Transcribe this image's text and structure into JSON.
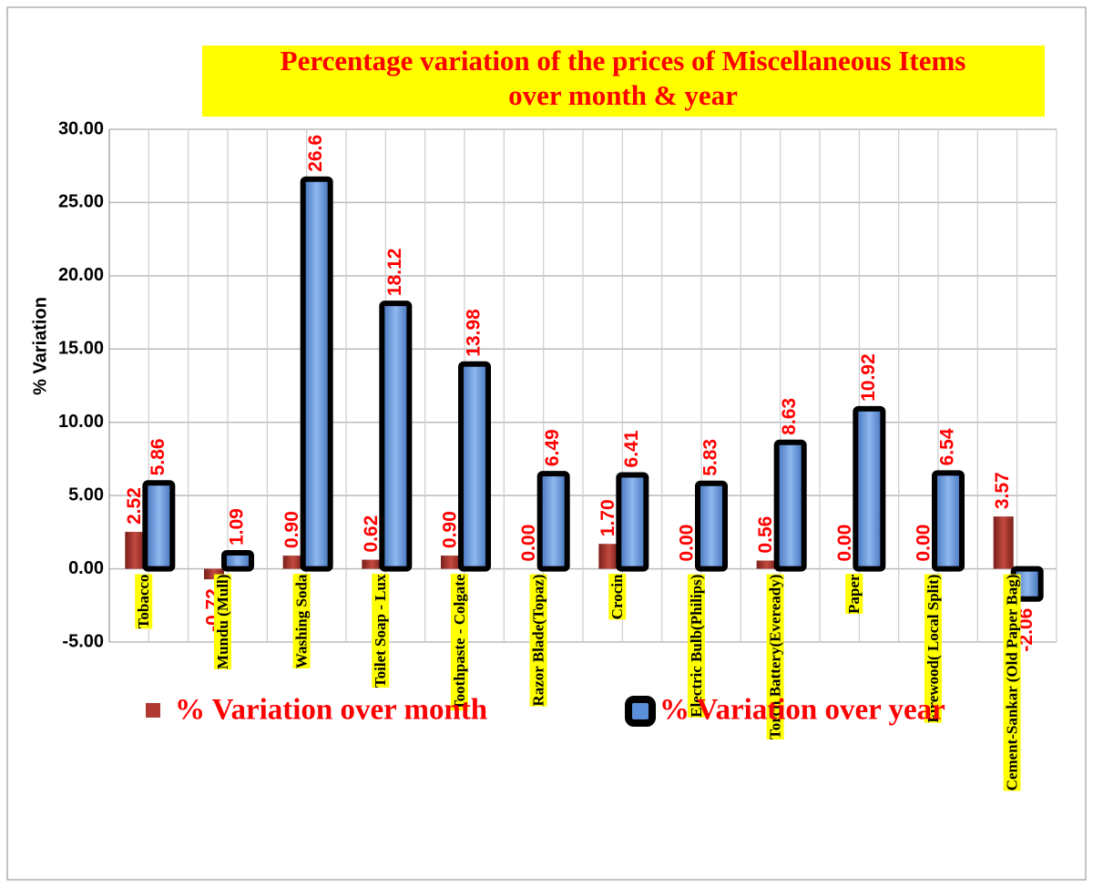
{
  "chart_data": {
    "type": "bar",
    "title": "Percentage variation of the prices of Miscellaneous Items over month & year",
    "y_label": "% Variation",
    "categories": [
      "Tobacco",
      "Mundu (Mull)",
      "Washing Soda",
      "Toilet Soap - Lux",
      "Toothpaste - Colgate",
      "Razor Blade(Topaz)",
      "Crocin",
      "Electric Bulb(Philips)",
      "Torch Battery(Eveready)",
      "Paper",
      "Firewood( Local Split)",
      "Cement-Sankar (Old Paper Bag)"
    ],
    "series": [
      {
        "name": "% Variation over month",
        "color": "#b03a32",
        "values": [
          2.52,
          -0.72,
          0.9,
          0.62,
          0.9,
          0,
          1.7,
          0,
          0.56,
          0,
          0,
          3.57
        ],
        "value_labels": [
          "2.52",
          "-0.72",
          "0.90",
          "0.62",
          "0.90",
          "0.00",
          "1.70",
          "0.00",
          "0.56",
          "0.00",
          "0.00",
          "3.57"
        ]
      },
      {
        "name": "% Variation over year",
        "color": "#5b8fd9",
        "values": [
          5.86,
          1.09,
          26.6,
          18.12,
          13.98,
          6.49,
          6.41,
          5.83,
          8.63,
          10.92,
          6.54,
          -2.06
        ],
        "value_labels": [
          "5.86",
          "1.09",
          "26.6",
          "18.12",
          "13.98",
          "6.49",
          "6.41",
          "5.83",
          "8.63",
          "10.92",
          "6.54",
          "-2.06"
        ]
      }
    ],
    "ylim": [
      -5,
      30
    ],
    "yticks": [
      {
        "value": -5,
        "label": "-5.00"
      },
      {
        "value": 0,
        "label": "0.00"
      },
      {
        "value": 5,
        "label": "5.00"
      },
      {
        "value": 10,
        "label": "10.00"
      },
      {
        "value": 15,
        "label": "15.00"
      },
      {
        "value": 20,
        "label": "20.00"
      },
      {
        "value": 25,
        "label": "25.00"
      },
      {
        "value": 30,
        "label": "30.00"
      }
    ],
    "grid": true
  }
}
